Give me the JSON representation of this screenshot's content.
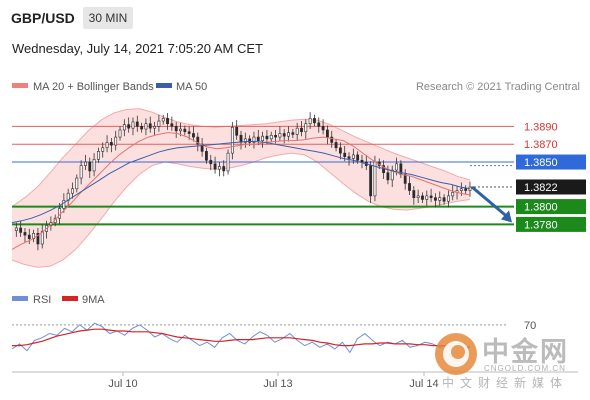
{
  "header": {
    "symbol": "GBP/USD",
    "timeframe": "30 MIN"
  },
  "timestamp": "Wednesday, July 14, 2021 7:05:20 AM CET",
  "legend": [
    {
      "label": "MA 20 + Bollinger Bands",
      "color": "#f08080"
    },
    {
      "label": "MA 50",
      "color": "#3a5fa8"
    }
  ],
  "credit": "Research © 2021 Trading Central",
  "rsi_legend": [
    {
      "label": "RSI",
      "color": "#6f8fd8"
    },
    {
      "label": "9MA",
      "color": "#d62424"
    }
  ],
  "watermark": {
    "brand": "中金网",
    "url": "CNGOLD.COM.CN",
    "sub": "中文财经新媒体"
  },
  "chart_data": {
    "type": "candlestick",
    "x_ticks": [
      "Jul 10",
      "Jul 13",
      "Jul 14"
    ],
    "ylim": [
      1.3712,
      1.3914
    ],
    "resistance_lines": [
      1.389,
      1.387
    ],
    "pivot_line": 1.385,
    "current_price": 1.3822,
    "support_lines": [
      1.38,
      1.378
    ],
    "price_labels": [
      "1.3890",
      "1.3870",
      "1.3850",
      "1.3822",
      "1.3800",
      "1.3780"
    ],
    "forecast_arrow": {
      "from": 1.3822,
      "to": 1.378
    },
    "price_path": [
      1.3773,
      1.3776,
      1.3771,
      1.3768,
      1.3764,
      1.377,
      1.3758,
      1.3772,
      1.3779,
      1.3782,
      1.3787,
      1.3798,
      1.3807,
      1.3815,
      1.382,
      1.3832,
      1.3846,
      1.385,
      1.384,
      1.3853,
      1.3862,
      1.3866,
      1.3872,
      1.3869,
      1.3878,
      1.3886,
      1.3892,
      1.3888,
      1.3895,
      1.389,
      1.3887,
      1.3893,
      1.3888,
      1.389,
      1.3896,
      1.3899,
      1.3893,
      1.389,
      1.3885,
      1.3887,
      1.3884,
      1.3882,
      1.3878,
      1.387,
      1.3862,
      1.3852,
      1.3848,
      1.3842,
      1.3845,
      1.384,
      1.386,
      1.3889,
      1.388,
      1.3872,
      1.3876,
      1.3872,
      1.3878,
      1.3874,
      1.3879,
      1.3876,
      1.388,
      1.3878,
      1.3882,
      1.3879,
      1.3883,
      1.3881,
      1.3888,
      1.3884,
      1.3893,
      1.3899,
      1.3894,
      1.389,
      1.3886,
      1.3878,
      1.3872,
      1.3866,
      1.386,
      1.3856,
      1.3854,
      1.3858,
      1.3852,
      1.385,
      1.3846,
      1.3812,
      1.385,
      1.3846,
      1.3838,
      1.383,
      1.3841,
      1.3848,
      1.3836,
      1.3826,
      1.3818,
      1.381,
      1.3812,
      1.3808,
      1.3812,
      1.381,
      1.3807,
      1.381,
      1.3806,
      1.3812,
      1.3816,
      1.3818,
      1.382,
      1.3818,
      1.3822
    ],
    "ma20": [
      1.3752,
      1.3758,
      1.3763,
      1.377,
      1.378,
      1.3792,
      1.3803,
      1.3815,
      1.3826,
      1.3837,
      1.3848,
      1.3858,
      1.3866,
      1.3873,
      1.3878,
      1.3881,
      1.3883,
      1.3882,
      1.3878,
      1.3872,
      1.3867,
      1.3865,
      1.3866,
      1.3868,
      1.387,
      1.387,
      1.3872,
      1.3873,
      1.3874,
      1.3874,
      1.3875,
      1.3877,
      1.3878,
      1.3876,
      1.3874,
      1.3868,
      1.386,
      1.3852,
      1.3845,
      1.384,
      1.3836,
      1.3834,
      1.383,
      1.3826,
      1.3822,
      1.3818,
      1.3815,
      1.3813
    ],
    "ma50": [
      1.3782,
      1.3784,
      1.3787,
      1.3791,
      1.3796,
      1.3802,
      1.3809,
      1.3816,
      1.3823,
      1.383,
      1.3837,
      1.3843,
      1.3849,
      1.3853,
      1.3857,
      1.3861,
      1.3864,
      1.3866,
      1.3867,
      1.3868,
      1.3869,
      1.387,
      1.3871,
      1.3872,
      1.3873,
      1.3873,
      1.3872,
      1.387,
      1.3868,
      1.3866,
      1.3864,
      1.3862,
      1.386,
      1.3857,
      1.3854,
      1.3852,
      1.3849,
      1.3846,
      1.3843,
      1.384,
      1.3838,
      1.3836,
      1.3833,
      1.383,
      1.3827,
      1.3825,
      1.3822,
      1.382
    ],
    "bb_upper": [
      1.38,
      1.381,
      1.3822,
      1.3838,
      1.3855,
      1.387,
      1.3885,
      1.3897,
      1.3905,
      1.3909,
      1.391,
      1.3906,
      1.39,
      1.3895,
      1.3892,
      1.389,
      1.3889,
      1.389,
      1.3891,
      1.3892,
      1.3893,
      1.3895,
      1.3897,
      1.3898,
      1.3897,
      1.3892,
      1.3885,
      1.3878,
      1.3872,
      1.3866,
      1.386,
      1.3855,
      1.385,
      1.3845,
      1.384,
      1.3834,
      1.383
    ],
    "bb_lower": [
      1.374,
      1.3735,
      1.3732,
      1.3733,
      1.374,
      1.3752,
      1.3768,
      1.3786,
      1.3805,
      1.3822,
      1.3836,
      1.3846,
      1.385,
      1.3848,
      1.3845,
      1.3843,
      1.3842,
      1.3843,
      1.3846,
      1.385,
      1.3855,
      1.3858,
      1.386,
      1.3858,
      1.385,
      1.3838,
      1.3826,
      1.3815,
      1.3806,
      1.38,
      1.3797,
      1.3796,
      1.3798,
      1.38,
      1.3803,
      1.3806,
      1.3808
    ],
    "rsi": {
      "ylim": [
        20,
        85
      ],
      "level_label": "70",
      "rsi": [
        42,
        48,
        40,
        52,
        55,
        60,
        58,
        66,
        62,
        70,
        64,
        72,
        68,
        60,
        63,
        58,
        66,
        70,
        64,
        56,
        60,
        54,
        50,
        58,
        52,
        46,
        50,
        44,
        55,
        60,
        52,
        48,
        56,
        62,
        58,
        50,
        54,
        60,
        52,
        46,
        50,
        44,
        48,
        42,
        50,
        38,
        54,
        60,
        52,
        46,
        50,
        48,
        52,
        44,
        46,
        50,
        48,
        44,
        46,
        42,
        40,
        46
      ],
      "ma9": [
        46,
        46,
        47,
        49,
        51,
        54,
        57,
        59,
        61,
        63,
        64,
        65,
        65,
        64,
        63,
        63,
        62,
        62,
        62,
        61,
        60,
        58,
        56,
        55,
        54,
        53,
        52,
        51,
        51,
        52,
        53,
        53,
        53,
        54,
        55,
        55,
        55,
        55,
        54,
        53,
        52,
        50,
        49,
        47,
        46,
        46,
        47,
        48,
        48,
        49,
        49,
        48,
        48,
        48,
        47,
        47,
        46,
        46,
        46,
        45,
        44,
        44
      ]
    }
  }
}
